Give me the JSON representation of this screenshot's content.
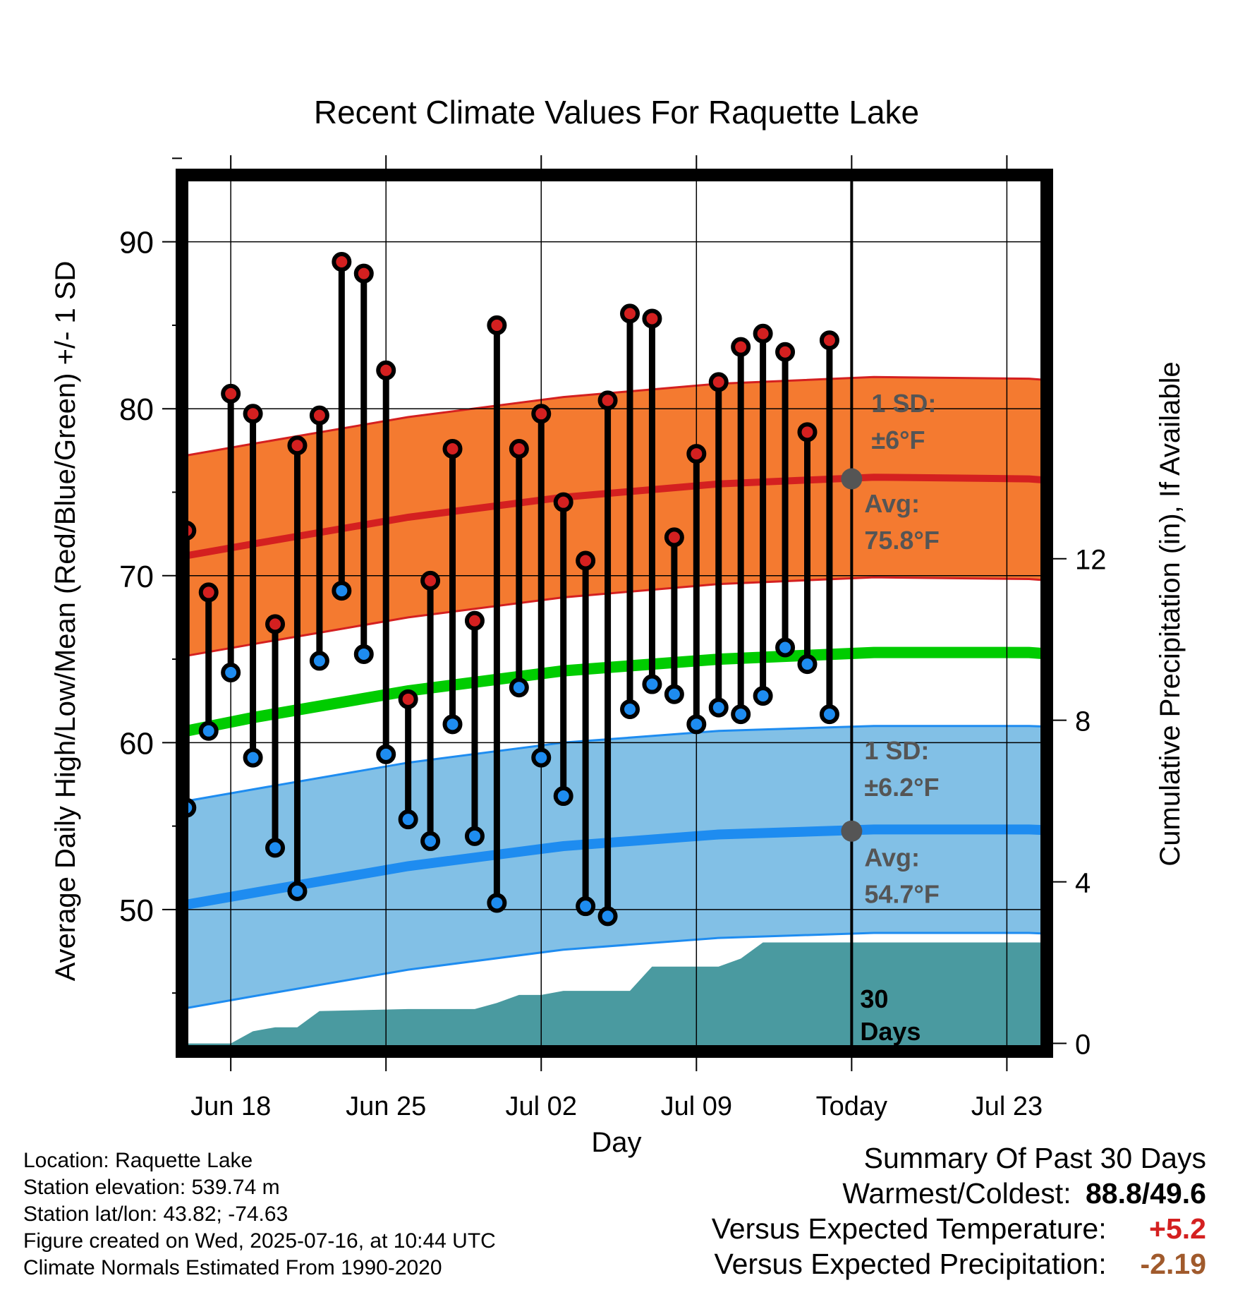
{
  "chart_data": {
    "type": "line",
    "title": "Recent Climate Values For Raquette Lake",
    "xlabel": "Day",
    "ylabel": "Average Daily High/Low/Mean (Red/Blue/Green) +/- 1 SD",
    "y2label": "Cumulative Precipitation (in), If Available",
    "ylim": [
      41.5,
      94
    ],
    "y2lim": [
      -0.2,
      21.5
    ],
    "yticks": [
      50,
      60,
      70,
      80,
      90
    ],
    "yticks_minor": [
      45,
      55,
      65,
      75,
      85
    ],
    "y2ticks": [
      0,
      4,
      8,
      12
    ],
    "xlim": [
      -4.7,
      53.5
    ],
    "xtick_positions": [
      0,
      10,
      20,
      30,
      40,
      50
    ],
    "xtick_labels": [
      "Jun 18",
      "Jun 25",
      "Jul 02",
      "Jul 09",
      "Today",
      "Jul 23"
    ],
    "xtick_note": "day index 0 = Jun 18; ticks are every 7 days (10 index units per week is NOT used; see days)",
    "days": [
      "2025-06-16",
      "2025-06-17",
      "2025-06-18",
      "2025-06-19",
      "2025-06-20",
      "2025-06-21",
      "2025-06-22",
      "2025-06-23",
      "2025-06-24",
      "2025-06-25",
      "2025-06-26",
      "2025-06-27",
      "2025-06-28",
      "2025-06-29",
      "2025-06-30",
      "2025-07-01",
      "2025-07-02",
      "2025-07-03",
      "2025-07-04",
      "2025-07-05",
      "2025-07-06",
      "2025-07-07",
      "2025-07-08",
      "2025-07-09",
      "2025-07-10",
      "2025-07-11",
      "2025-07-12",
      "2025-07-13",
      "2025-07-14",
      "2025-07-15"
    ],
    "highs": [
      72.7,
      69.0,
      80.9,
      79.7,
      67.1,
      77.8,
      79.6,
      88.8,
      88.1,
      82.3,
      62.6,
      69.7,
      77.6,
      67.3,
      85.0,
      77.6,
      79.7,
      74.4,
      70.9,
      80.5,
      85.7,
      85.4,
      72.3,
      77.3,
      81.6,
      83.7,
      84.5,
      83.4,
      78.6,
      84.1
    ],
    "lows": [
      56.1,
      60.7,
      64.2,
      59.1,
      53.7,
      51.1,
      64.9,
      69.1,
      65.3,
      59.3,
      55.4,
      54.1,
      61.1,
      54.4,
      50.4,
      63.3,
      59.1,
      56.8,
      50.2,
      49.6,
      62.0,
      63.5,
      62.9,
      61.1,
      62.1,
      61.7,
      62.8,
      65.7,
      64.7,
      61.7
    ],
    "normals_x": [
      "2025-06-16",
      "2025-06-19",
      "2025-06-26",
      "2025-07-03",
      "2025-07-10",
      "2025-07-17",
      "2025-07-24",
      "2025-07-26"
    ],
    "normal_high": [
      71.2,
      71.9,
      73.5,
      74.7,
      75.5,
      75.9,
      75.8,
      75.6
    ],
    "normal_low": [
      50.3,
      51.0,
      52.6,
      53.8,
      54.5,
      54.8,
      54.8,
      54.7
    ],
    "normal_mean": [
      60.7,
      61.5,
      63.1,
      64.3,
      65.0,
      65.4,
      65.4,
      65.2
    ],
    "high_sd": 6.0,
    "low_sd": 6.2,
    "precip_x": [
      "2025-06-16",
      "2025-06-17",
      "2025-06-18",
      "2025-06-19",
      "2025-06-20",
      "2025-06-21",
      "2025-06-22",
      "2025-06-26",
      "2025-06-29",
      "2025-06-30",
      "2025-07-01",
      "2025-07-02",
      "2025-07-03",
      "2025-07-06",
      "2025-07-07",
      "2025-07-10",
      "2025-07-11",
      "2025-07-12",
      "2025-07-26"
    ],
    "precip_cum": [
      0,
      0,
      0,
      0.3,
      0.4,
      0.4,
      0.8,
      0.85,
      0.85,
      1.0,
      1.2,
      1.2,
      1.3,
      1.3,
      1.9,
      1.9,
      2.1,
      2.5,
      2.5
    ],
    "today": "2025-07-16",
    "annotations": {
      "high_sd_label": "1 SD:",
      "high_sd_value": "±6°F",
      "high_avg_label": "Avg:",
      "high_avg_value": "75.8°F",
      "low_sd_label": "1 SD:",
      "low_sd_value": "±6.2°F",
      "low_avg_label": "Avg:",
      "low_avg_value": "54.7°F",
      "window_label_1": "30",
      "window_label_2": "Days"
    },
    "grid": true,
    "legend": "none"
  },
  "colors": {
    "high_band": "#f47a30",
    "high_line": "#d42020",
    "low_band": "#82c0e6",
    "low_line": "#1e8cf0",
    "mean_line": "#00cc00",
    "precip_fill": "#4a9aa0",
    "high_marker": "#d42020",
    "low_marker": "#1e8cf0",
    "annotation_text": "#555555",
    "positive_value": "#d42020",
    "negative_value": "#a05a2c"
  },
  "station": {
    "location": "Location: Raquette Lake",
    "elevation": "Station elevation: 539.74 m",
    "latlon": "Station lat/lon: 43.82; -74.63",
    "created": "Figure created on Wed, 2025-07-16, at 10:44 UTC",
    "normals": "Climate Normals Estimated From 1990-2020"
  },
  "summary": {
    "title": "Summary Of Past 30 Days",
    "warm_cold_label": "Warmest/Coldest:",
    "warm_cold_value": "88.8/49.6",
    "temp_label": "Versus Expected Temperature:",
    "temp_value": "+5.2",
    "precip_label": "Versus Expected Precipitation:",
    "precip_value": "-2.19"
  }
}
